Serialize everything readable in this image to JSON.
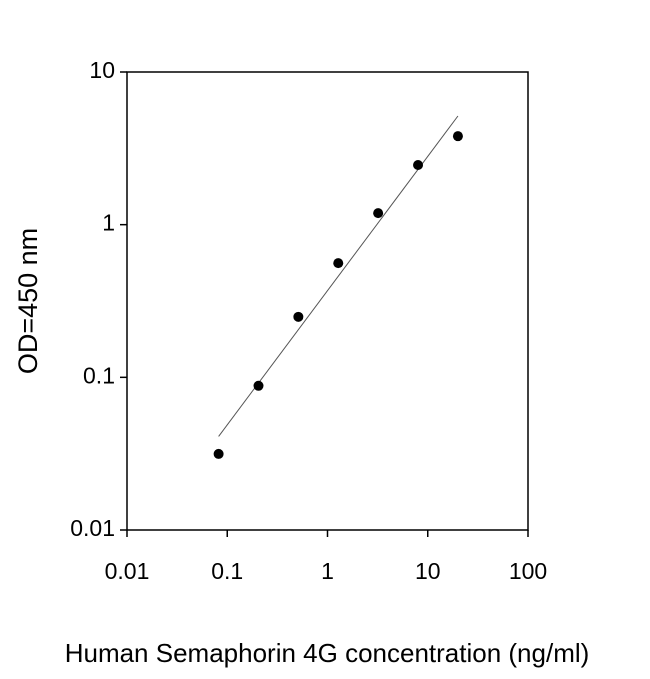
{
  "chart_data": {
    "type": "scatter",
    "x_label": "Human Semaphorin 4G concentration (ng/ml)",
    "y_label": "OD=450 nm",
    "x": [
      0.082,
      0.205,
      0.512,
      1.28,
      3.2,
      8,
      20
    ],
    "values": [
      0.0315,
      0.088,
      0.249,
      0.56,
      1.19,
      2.46,
      3.8
    ],
    "color": "#000000",
    "trendline": {
      "x": [
        0.082,
        20
      ],
      "values": [
        0.041,
        5.15
      ],
      "color": "#555555"
    },
    "xlog": true,
    "ylog": true,
    "xlim": [
      0.01,
      100
    ],
    "ylim": [
      0.01,
      10
    ],
    "xticks": [
      0.01,
      0.1,
      1,
      10,
      100
    ],
    "yticks": [
      0.01,
      0.1,
      1,
      10
    ]
  }
}
